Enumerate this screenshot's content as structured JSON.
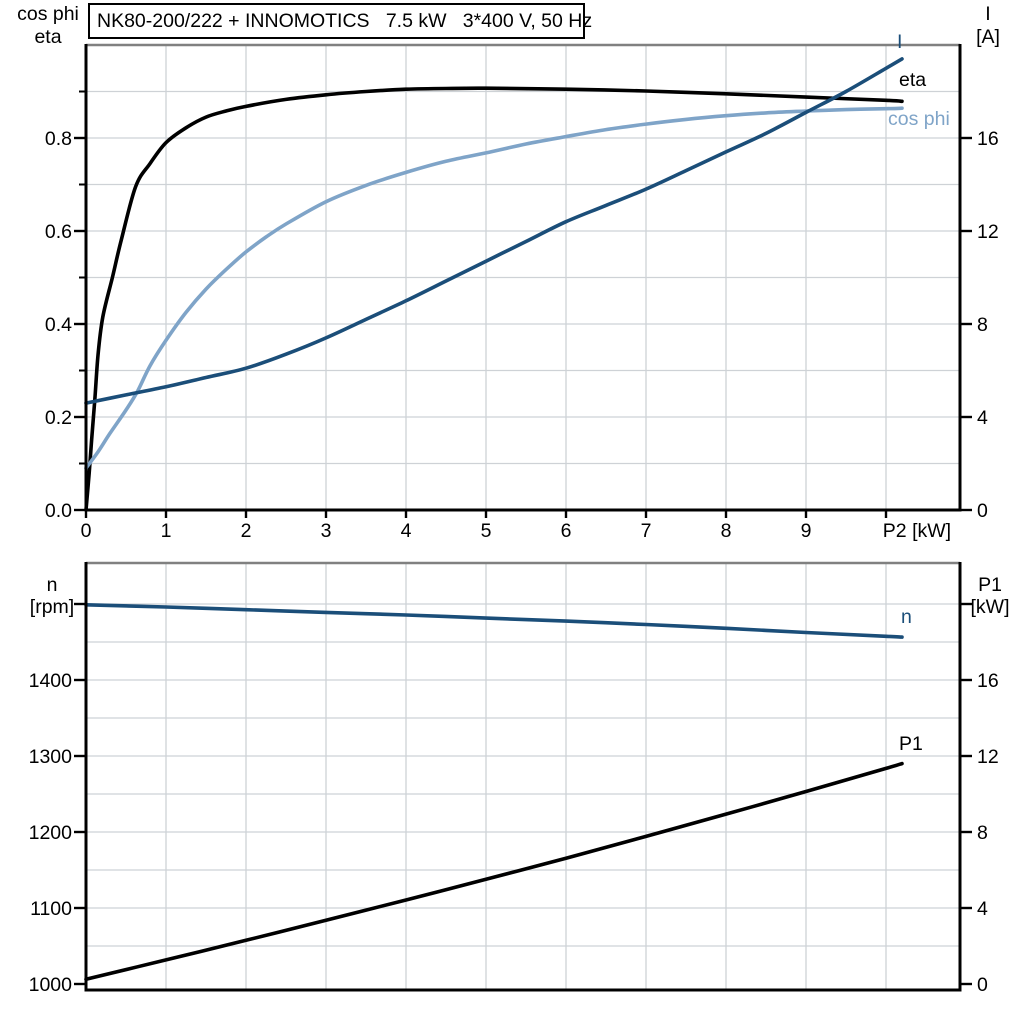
{
  "colors": {
    "curve_black": "#000000",
    "curve_dark_blue": "#1b4e79",
    "curve_light_blue": "#7fa4c8",
    "grid": "#ced2d6",
    "plot_top_border": "#808080",
    "axis": "#000000",
    "text": "#000000",
    "background": "#ffffff"
  },
  "chart_data": [
    {
      "type": "line",
      "title": "NK80-200/222 + INNOMOTICS   7.5 kW   3*400 V, 50 Hz",
      "x_axis": {
        "label": "P2 [kW]",
        "min": 0,
        "max": 10.9,
        "ticks": [
          0,
          1,
          2,
          3,
          4,
          5,
          6,
          7,
          8,
          9,
          10
        ],
        "tick_labels": [
          "0",
          "1",
          "2",
          "3",
          "4",
          "5",
          "6",
          "7",
          "8",
          "9",
          ""
        ],
        "gridlines": [
          1,
          2,
          3,
          4,
          5,
          6,
          7,
          8,
          9,
          10
        ]
      },
      "left_axis": {
        "title_lines": [
          "cos phi",
          "eta"
        ],
        "min": 0,
        "max": 1.0,
        "major_ticks": [
          0,
          0.2,
          0.4,
          0.6,
          0.8
        ],
        "major_labels": [
          "0.0",
          "0.2",
          "0.4",
          "0.6",
          "0.8"
        ],
        "minor_ticks": [
          0.1,
          0.3,
          0.5,
          0.7,
          0.9
        ],
        "gridlines": [
          0.1,
          0.2,
          0.3,
          0.4,
          0.5,
          0.6,
          0.7,
          0.8,
          0.9
        ]
      },
      "right_axis": {
        "title_lines": [
          "I",
          "[A]"
        ],
        "min": 0,
        "max": 20,
        "major_ticks": [
          0,
          4,
          8,
          12,
          16
        ],
        "major_labels": [
          "0",
          "4",
          "8",
          "12",
          "16"
        ]
      },
      "series": [
        {
          "name": "eta",
          "label": "eta",
          "axis": "left",
          "color_key": "curve_black",
          "points": [
            [
              0,
              0
            ],
            [
              0.04,
              0.08
            ],
            [
              0.07,
              0.15
            ],
            [
              0.11,
              0.237
            ],
            [
              0.15,
              0.333
            ],
            [
              0.21,
              0.415
            ],
            [
              0.33,
              0.5
            ],
            [
              0.44,
              0.58
            ],
            [
              0.62,
              0.695
            ],
            [
              0.8,
              0.745
            ],
            [
              1,
              0.79
            ],
            [
              1.25,
              0.822
            ],
            [
              1.5,
              0.845
            ],
            [
              1.75,
              0.858
            ],
            [
              2,
              0.868
            ],
            [
              2.5,
              0.883
            ],
            [
              3,
              0.893
            ],
            [
              3.5,
              0.9
            ],
            [
              4,
              0.905
            ],
            [
              4.5,
              0.9065
            ],
            [
              5,
              0.907
            ],
            [
              6,
              0.905
            ],
            [
              7,
              0.901
            ],
            [
              8,
              0.895
            ],
            [
              9,
              0.888
            ],
            [
              10,
              0.881
            ],
            [
              10.2,
              0.879
            ]
          ]
        },
        {
          "name": "cos_phi",
          "label": "cos phi",
          "axis": "left",
          "color_key": "curve_light_blue",
          "points": [
            [
              0,
              0.09
            ],
            [
              0.15,
              0.125
            ],
            [
              0.3,
              0.165
            ],
            [
              0.5,
              0.215
            ],
            [
              0.64,
              0.254
            ],
            [
              0.8,
              0.31
            ],
            [
              1,
              0.365
            ],
            [
              1.25,
              0.425
            ],
            [
              1.5,
              0.475
            ],
            [
              1.75,
              0.517
            ],
            [
              2,
              0.555
            ],
            [
              2.25,
              0.587
            ],
            [
              2.5,
              0.615
            ],
            [
              3,
              0.663
            ],
            [
              3.5,
              0.698
            ],
            [
              4,
              0.726
            ],
            [
              4.5,
              0.75
            ],
            [
              5,
              0.768
            ],
            [
              5.5,
              0.787
            ],
            [
              6,
              0.803
            ],
            [
              6.5,
              0.818
            ],
            [
              7,
              0.83
            ],
            [
              7.5,
              0.84
            ],
            [
              8,
              0.848
            ],
            [
              8.5,
              0.854
            ],
            [
              9,
              0.858
            ],
            [
              9.5,
              0.861
            ],
            [
              10,
              0.863
            ],
            [
              10.2,
              0.864
            ]
          ]
        },
        {
          "name": "I",
          "label": "I",
          "axis": "right",
          "color_key": "curve_dark_blue",
          "points": [
            [
              0,
              4.6
            ],
            [
              0.5,
              4.95
            ],
            [
              1,
              5.3
            ],
            [
              1.5,
              5.7
            ],
            [
              2,
              6.1
            ],
            [
              2.5,
              6.7
            ],
            [
              3,
              7.4
            ],
            [
              3.5,
              8.2
            ],
            [
              4,
              9.0
            ],
            [
              4.5,
              9.85
            ],
            [
              5,
              10.7
            ],
            [
              5.5,
              11.55
            ],
            [
              6,
              12.4
            ],
            [
              6.5,
              13.1
            ],
            [
              7,
              13.8
            ],
            [
              7.5,
              14.6
            ],
            [
              8,
              15.4
            ],
            [
              8.5,
              16.2
            ],
            [
              9,
              17.1
            ],
            [
              9.5,
              18.0
            ],
            [
              10,
              19.0
            ],
            [
              10.2,
              19.4
            ]
          ]
        }
      ]
    },
    {
      "type": "line",
      "title": "",
      "x_axis": {
        "label": "",
        "min": 0,
        "max": 10.9,
        "ticks": [],
        "tick_labels": [],
        "gridlines": [
          1,
          2,
          3,
          4,
          5,
          6,
          7,
          8,
          9,
          10
        ]
      },
      "left_axis": {
        "title_lines": [
          "n",
          "[rpm]"
        ],
        "min": 1000,
        "max": 1550,
        "major_ticks": [
          1000,
          1100,
          1200,
          1300,
          1400,
          1500
        ],
        "major_labels": [
          "1000",
          "1100",
          "1200",
          "1300",
          "1400",
          ""
        ],
        "minor_ticks": [],
        "gridlines": [
          1050,
          1100,
          1150,
          1200,
          1250,
          1300,
          1350,
          1400,
          1450,
          1500
        ]
      },
      "right_axis": {
        "title_lines": [
          "P1",
          "[kW]"
        ],
        "min": 0,
        "max": 20,
        "major_ticks": [
          0,
          4,
          8,
          12,
          16,
          20
        ],
        "major_labels": [
          "0",
          "4",
          "8",
          "12",
          "16",
          ""
        ]
      },
      "series": [
        {
          "name": "n",
          "label": "n",
          "axis": "left",
          "color_key": "curve_dark_blue",
          "points": [
            [
              0,
              1499
            ],
            [
              1,
              1496
            ],
            [
              2,
              1492.5
            ],
            [
              3,
              1489
            ],
            [
              4,
              1485.5
            ],
            [
              5,
              1481.5
            ],
            [
              6,
              1477.5
            ],
            [
              7,
              1473
            ],
            [
              8,
              1468
            ],
            [
              9,
              1462.5
            ],
            [
              10,
              1457.5
            ],
            [
              10.2,
              1456.5
            ]
          ]
        },
        {
          "name": "P1",
          "label": "P1",
          "axis": "right",
          "color_key": "curve_black",
          "points": [
            [
              0,
              0.25
            ],
            [
              1,
              1.27
            ],
            [
              2,
              2.3
            ],
            [
              3,
              3.36
            ],
            [
              4,
              4.42
            ],
            [
              5,
              5.51
            ],
            [
              6,
              6.62
            ],
            [
              7,
              7.77
            ],
            [
              8,
              8.94
            ],
            [
              9,
              10.13
            ],
            [
              10,
              11.35
            ],
            [
              10.2,
              11.6
            ]
          ]
        }
      ]
    }
  ]
}
